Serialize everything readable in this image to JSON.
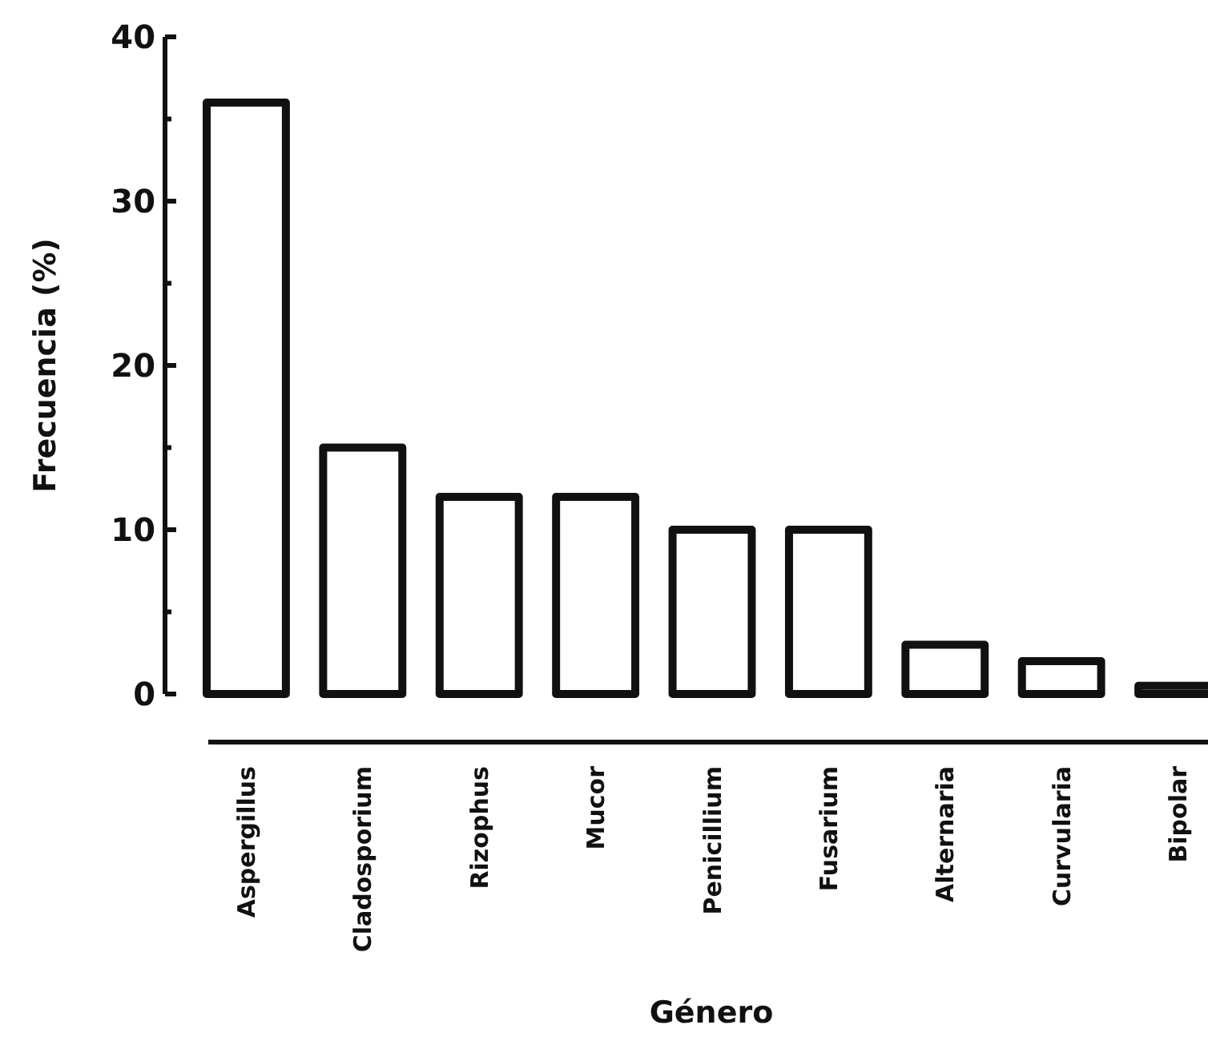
{
  "chart_data": {
    "type": "bar",
    "xlabel": "Género",
    "ylabel": "Frecuencia (%)",
    "categories": [
      "Aspergillus",
      "Cladosporium",
      "Rizophus",
      "Mucor",
      "Penicillium",
      "Fusarium",
      "Alternaria",
      "Curvularia",
      "Bipolar"
    ],
    "values": [
      36,
      15,
      12,
      12,
      10,
      10,
      3,
      2,
      0.5
    ],
    "color": "#ffffff",
    "ylim": [
      0,
      40
    ],
    "yticks": [
      0,
      {
        "value": 5,
        "label": null
      },
      10,
      {
        "value": 15,
        "label": null
      },
      20,
      {
        "value": 25,
        "label": null
      },
      30,
      {
        "value": 35,
        "label": null
      },
      40
    ],
    "grid": false
  }
}
